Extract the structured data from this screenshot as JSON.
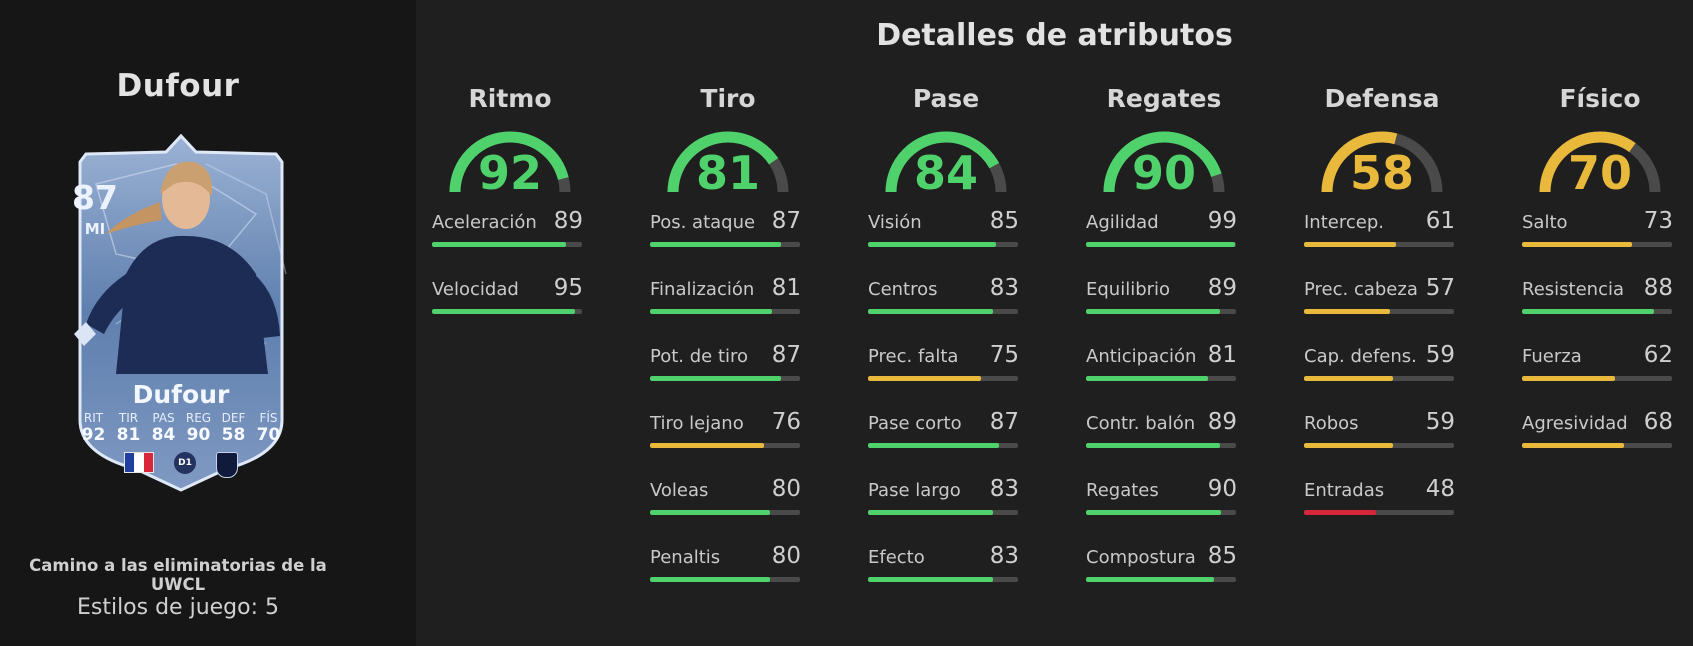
{
  "player": {
    "name": "Dufour",
    "card_name": "Dufour",
    "rating": "87",
    "position": "MI",
    "promo": "Camino a las eliminatorias de la UWCL",
    "playstyles": "Estilos de juego: 5",
    "league_badge": "D1",
    "card_stats": [
      {
        "label": "RIT",
        "value": "92"
      },
      {
        "label": "TIR",
        "value": "81"
      },
      {
        "label": "PAS",
        "value": "84"
      },
      {
        "label": "REG",
        "value": "90"
      },
      {
        "label": "DEF",
        "value": "58"
      },
      {
        "label": "FÍS",
        "value": "70"
      }
    ]
  },
  "page": {
    "heading": "Detalles de atributos"
  },
  "colors": {
    "green": "#4fd26b",
    "yellow": "#e8b93a",
    "red": "#d8263a",
    "track": "#4a4a4a"
  },
  "categories": [
    {
      "name": "Ritmo",
      "value": 92,
      "color": "green",
      "attributes": [
        {
          "name": "Aceleración",
          "value": 89
        },
        {
          "name": "Velocidad",
          "value": 95
        }
      ]
    },
    {
      "name": "Tiro",
      "value": 81,
      "color": "green",
      "attributes": [
        {
          "name": "Pos. ataque",
          "value": 87
        },
        {
          "name": "Finalización",
          "value": 81
        },
        {
          "name": "Pot. de tiro",
          "value": 87
        },
        {
          "name": "Tiro lejano",
          "value": 76
        },
        {
          "name": "Voleas",
          "value": 80
        },
        {
          "name": "Penaltis",
          "value": 80
        }
      ]
    },
    {
      "name": "Pase",
      "value": 84,
      "color": "green",
      "attributes": [
        {
          "name": "Visión",
          "value": 85
        },
        {
          "name": "Centros",
          "value": 83
        },
        {
          "name": "Prec. falta",
          "value": 75
        },
        {
          "name": "Pase corto",
          "value": 87
        },
        {
          "name": "Pase largo",
          "value": 83
        },
        {
          "name": "Efecto",
          "value": 83
        }
      ]
    },
    {
      "name": "Regates",
      "value": 90,
      "color": "green",
      "attributes": [
        {
          "name": "Agilidad",
          "value": 99
        },
        {
          "name": "Equilibrio",
          "value": 89
        },
        {
          "name": "Anticipación",
          "value": 81
        },
        {
          "name": "Contr. balón",
          "value": 89
        },
        {
          "name": "Regates",
          "value": 90
        },
        {
          "name": "Compostura",
          "value": 85
        }
      ]
    },
    {
      "name": "Defensa",
      "value": 58,
      "color": "yellow",
      "attributes": [
        {
          "name": "Intercep.",
          "value": 61
        },
        {
          "name": "Prec. cabeza",
          "value": 57
        },
        {
          "name": "Cap. defens.",
          "value": 59
        },
        {
          "name": "Robos",
          "value": 59
        },
        {
          "name": "Entradas",
          "value": 48
        }
      ]
    },
    {
      "name": "Físico",
      "value": 70,
      "color": "yellow",
      "attributes": [
        {
          "name": "Salto",
          "value": 73
        },
        {
          "name": "Resistencia",
          "value": 88
        },
        {
          "name": "Fuerza",
          "value": 62
        },
        {
          "name": "Agresividad",
          "value": 68
        }
      ]
    }
  ]
}
